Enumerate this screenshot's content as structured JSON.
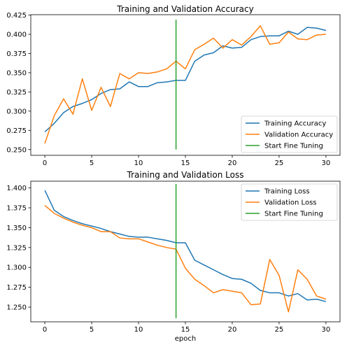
{
  "chart_data": [
    {
      "type": "line",
      "title": "Training and Validation Accuracy",
      "xlabel": "",
      "ylabel": "",
      "xlim": [
        -1.5,
        31.5
      ],
      "ylim": [
        0.2425,
        0.4255
      ],
      "xticks": [
        0,
        5,
        10,
        15,
        20,
        25,
        30
      ],
      "xtick_labels": [
        "0",
        "5",
        "10",
        "15",
        "20",
        "25",
        "30"
      ],
      "yticks": [
        0.25,
        0.275,
        0.3,
        0.325,
        0.35,
        0.375,
        0.4,
        0.425
      ],
      "ytick_labels": [
        "0.250",
        "0.275",
        "0.300",
        "0.325",
        "0.350",
        "0.375",
        "0.400",
        "0.425"
      ],
      "grid": false,
      "legend_position": "bottom-right",
      "x": [
        0,
        1,
        2,
        3,
        4,
        5,
        6,
        7,
        8,
        9,
        10,
        11,
        12,
        13,
        14,
        15,
        16,
        17,
        18,
        19,
        20,
        21,
        22,
        23,
        24,
        25,
        26,
        27,
        28,
        29,
        30
      ],
      "series": [
        {
          "name": "Training Accuracy",
          "color": "#1f77b4",
          "values": [
            0.273,
            0.284,
            0.298,
            0.306,
            0.31,
            0.315,
            0.323,
            0.328,
            0.329,
            0.338,
            0.332,
            0.332,
            0.337,
            0.338,
            0.34,
            0.34,
            0.365,
            0.373,
            0.376,
            0.385,
            0.382,
            0.383,
            0.393,
            0.397,
            0.398,
            0.398,
            0.404,
            0.4,
            0.409,
            0.408,
            0.405
          ]
        },
        {
          "name": "Validation Accuracy",
          "color": "#ff7f0e",
          "values": [
            0.258,
            0.294,
            0.316,
            0.296,
            0.342,
            0.301,
            0.331,
            0.306,
            0.349,
            0.342,
            0.35,
            0.349,
            0.351,
            0.355,
            0.365,
            0.355,
            0.38,
            0.387,
            0.395,
            0.382,
            0.393,
            0.386,
            0.397,
            0.411,
            0.387,
            0.389,
            0.403,
            0.394,
            0.393,
            0.399,
            0.4
          ]
        }
      ],
      "vlines": [
        {
          "name": "Start Fine Tuning",
          "color": "#2ca02c",
          "x": 14,
          "y": [
            0.25,
            0.419
          ]
        }
      ]
    },
    {
      "type": "line",
      "title": "Training and Validation Loss",
      "xlabel": "epoch",
      "ylabel": "",
      "xlim": [
        -1.5,
        31.5
      ],
      "ylim": [
        1.2315,
        1.4085
      ],
      "xticks": [
        0,
        5,
        10,
        15,
        20,
        25,
        30
      ],
      "xtick_labels": [
        "0",
        "5",
        "10",
        "15",
        "20",
        "25",
        "30"
      ],
      "yticks": [
        1.25,
        1.275,
        1.3,
        1.325,
        1.35,
        1.375,
        1.4
      ],
      "ytick_labels": [
        "1.250",
        "1.275",
        "1.300",
        "1.325",
        "1.350",
        "1.375",
        "1.400"
      ],
      "grid": false,
      "legend_position": "top-right",
      "x": [
        0,
        1,
        2,
        3,
        4,
        5,
        6,
        7,
        8,
        9,
        10,
        11,
        12,
        13,
        14,
        15,
        16,
        17,
        18,
        19,
        20,
        21,
        22,
        23,
        24,
        25,
        26,
        27,
        28,
        29,
        30
      ],
      "series": [
        {
          "name": "Training Loss",
          "color": "#1f77b4",
          "values": [
            1.397,
            1.372,
            1.364,
            1.359,
            1.355,
            1.352,
            1.349,
            1.345,
            1.342,
            1.339,
            1.338,
            1.338,
            1.336,
            1.334,
            1.331,
            1.331,
            1.309,
            1.303,
            1.297,
            1.291,
            1.286,
            1.285,
            1.28,
            1.271,
            1.268,
            1.268,
            1.264,
            1.267,
            1.259,
            1.26,
            1.257
          ]
        },
        {
          "name": "Validation Loss",
          "color": "#ff7f0e",
          "values": [
            1.378,
            1.368,
            1.362,
            1.357,
            1.353,
            1.35,
            1.345,
            1.345,
            1.337,
            1.336,
            1.336,
            1.332,
            1.328,
            1.325,
            1.323,
            1.299,
            1.285,
            1.277,
            1.268,
            1.272,
            1.27,
            1.268,
            1.253,
            1.254,
            1.31,
            1.29,
            1.244,
            1.297,
            1.285,
            1.264,
            1.26
          ]
        }
      ],
      "vlines": [
        {
          "name": "Start Fine Tuning",
          "color": "#2ca02c",
          "x": 14,
          "y": [
            1.236,
            1.405
          ]
        }
      ]
    }
  ]
}
